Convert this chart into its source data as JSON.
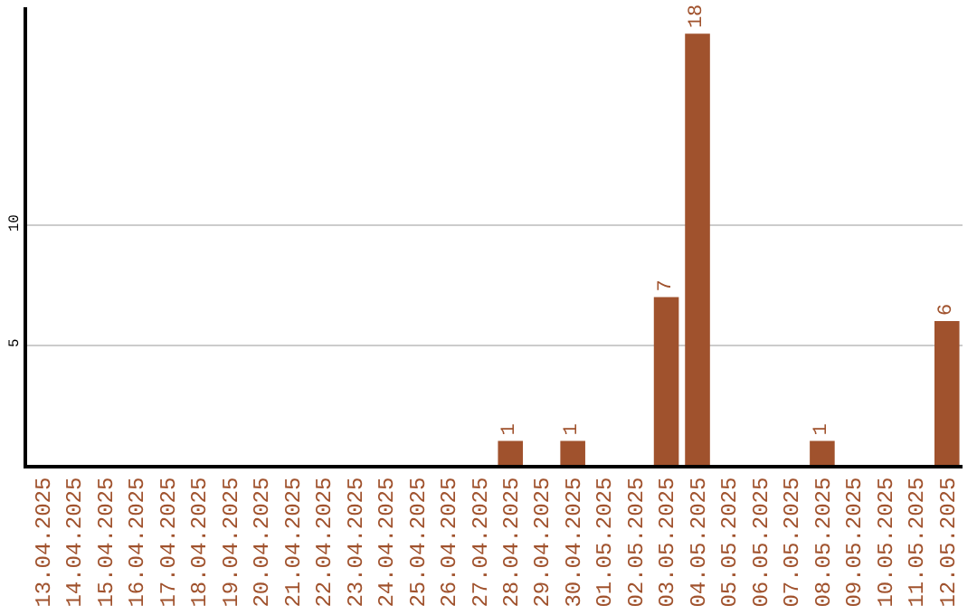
{
  "chart_data": {
    "type": "bar",
    "categories": [
      "13.04.2025",
      "14.04.2025",
      "15.04.2025",
      "16.04.2025",
      "17.04.2025",
      "18.04.2025",
      "19.04.2025",
      "20.04.2025",
      "21.04.2025",
      "22.04.2025",
      "23.04.2025",
      "24.04.2025",
      "25.04.2025",
      "26.04.2025",
      "27.04.2025",
      "28.04.2025",
      "29.04.2025",
      "30.04.2025",
      "01.05.2025",
      "02.05.2025",
      "03.05.2025",
      "04.05.2025",
      "05.05.2025",
      "06.05.2025",
      "07.05.2025",
      "08.05.2025",
      "09.05.2025",
      "10.05.2025",
      "11.05.2025",
      "12.05.2025"
    ],
    "values": [
      0,
      0,
      0,
      0,
      0,
      0,
      0,
      0,
      0,
      0,
      0,
      0,
      0,
      0,
      0,
      1,
      0,
      1,
      0,
      0,
      7,
      18,
      0,
      0,
      0,
      1,
      0,
      0,
      0,
      6
    ],
    "value_labels": [
      null,
      null,
      null,
      null,
      null,
      null,
      null,
      null,
      null,
      null,
      null,
      null,
      null,
      null,
      null,
      "1",
      null,
      "1",
      null,
      null,
      "7",
      "18",
      null,
      null,
      null,
      "1",
      null,
      null,
      null,
      "6"
    ],
    "color": "#a0522d",
    "ylim": [
      0,
      19.1
    ],
    "yticks": [
      5,
      10
    ],
    "grid": "y"
  }
}
